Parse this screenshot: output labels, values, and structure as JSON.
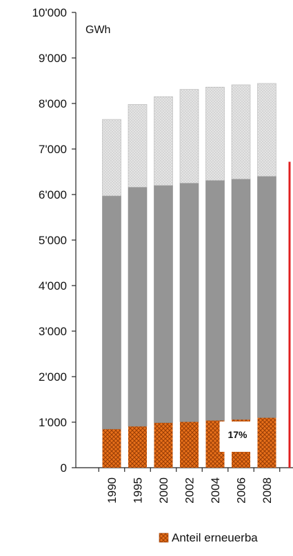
{
  "chart_data": {
    "type": "bar",
    "stacked": true,
    "unit": "GWh",
    "categories": [
      "1990",
      "1995",
      "2000",
      "2002",
      "2004",
      "2006",
      "2008"
    ],
    "series": [
      {
        "name": "Anteil erneuerba",
        "color": "#e8701a",
        "pattern": "orange-crosshatch",
        "values": [
          850,
          910,
          990,
          1010,
          1040,
          1060,
          1100
        ]
      },
      {
        "color": "#959595",
        "pattern": "solid-gray",
        "values": [
          5120,
          5250,
          5210,
          5240,
          5270,
          5280,
          5300
        ]
      },
      {
        "color": "#e0e0e0",
        "pattern": "light-gray-dotted",
        "values": [
          1680,
          1820,
          1950,
          2060,
          2050,
          2070,
          2040
        ]
      }
    ],
    "ylim": [
      0,
      10000
    ],
    "yticks": [
      0,
      1000,
      2000,
      3000,
      4000,
      5000,
      6000,
      7000,
      8000,
      9000,
      10000
    ],
    "ytick_labels": [
      "0",
      "1'000",
      "2'000",
      "3'000",
      "4'000",
      "5'000",
      "6'000",
      "7'000",
      "8'000",
      "9'000",
      "10'000"
    ],
    "annotation": {
      "text": "17%",
      "category": "2006"
    },
    "right_line": {
      "color": "#e02020",
      "from": 0,
      "to": 6720
    },
    "grid": false,
    "legend_position": "bottom"
  }
}
